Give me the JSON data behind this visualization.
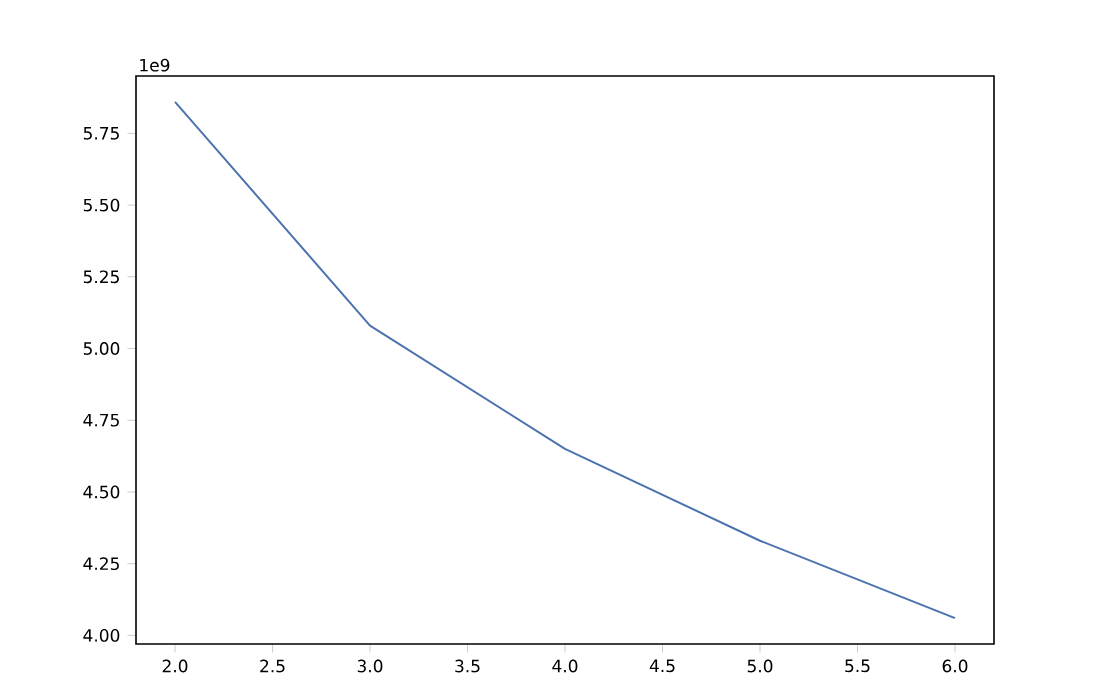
{
  "chart_data": {
    "type": "line",
    "x": [
      2,
      3,
      4,
      5,
      6
    ],
    "series": [
      {
        "color": "#4c72b0",
        "values": [
          5.86,
          5.08,
          4.65,
          4.33,
          4.06
        ]
      }
    ],
    "xlim": [
      1.8,
      6.2
    ],
    "xticks": [
      {
        "value": 2,
        "label": "2.0"
      },
      {
        "value": 2.5,
        "label": "2.5"
      },
      {
        "value": 3,
        "label": "3.0"
      },
      {
        "value": 3.5,
        "label": "3.5"
      },
      {
        "value": 4,
        "label": "4.0"
      },
      {
        "value": 4.5,
        "label": "4.5"
      },
      {
        "value": 5,
        "label": "5.0"
      },
      {
        "value": 5.5,
        "label": "5.5"
      },
      {
        "value": 6,
        "label": "6.0"
      }
    ],
    "ylim": [
      3.97,
      5.95
    ],
    "yticks": [
      {
        "value": 4,
        "label": "4.00"
      },
      {
        "value": 4.25,
        "label": "4.25"
      },
      {
        "value": 4.5,
        "label": "4.50"
      },
      {
        "value": 4.75,
        "label": "4.75"
      },
      {
        "value": 5,
        "label": "5.00"
      },
      {
        "value": 5.25,
        "label": "5.25"
      },
      {
        "value": 5.5,
        "label": "5.50"
      },
      {
        "value": 5.75,
        "label": "5.75"
      }
    ],
    "annotations": [
      "1e9"
    ],
    "marker": "none",
    "line_style": "solid"
  }
}
